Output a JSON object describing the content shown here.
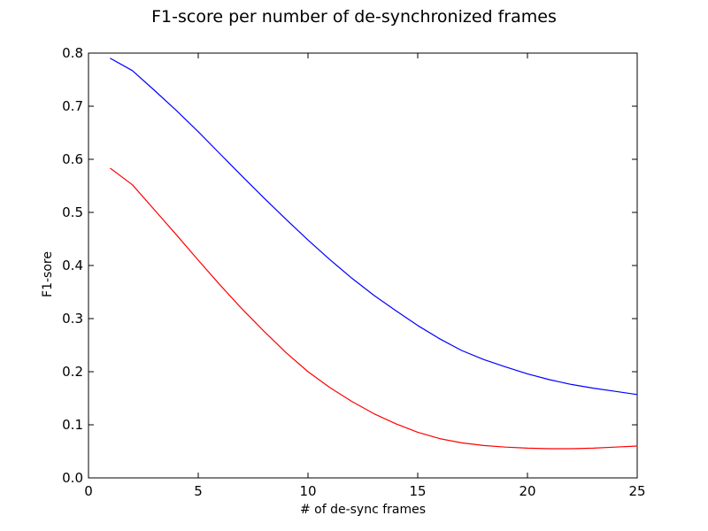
{
  "chart_data": {
    "type": "line",
    "title": "F1-score per number of de-synchronized frames",
    "xlabel": "# of de-sync frames",
    "ylabel": "F1-sore",
    "xlim": [
      0,
      25
    ],
    "ylim": [
      0.0,
      0.8
    ],
    "xticks": [
      "0",
      "5",
      "10",
      "15",
      "20",
      "25"
    ],
    "yticks": [
      "0.0",
      "0.1",
      "0.2",
      "0.3",
      "0.4",
      "0.5",
      "0.6",
      "0.7",
      "0.8"
    ],
    "grid": false,
    "legend": "none",
    "x": [
      1,
      2,
      3,
      4,
      5,
      6,
      7,
      8,
      9,
      10,
      11,
      12,
      13,
      14,
      15,
      16,
      17,
      18,
      19,
      20,
      21,
      22,
      23,
      24,
      25
    ],
    "series": [
      {
        "color": "#0000ff",
        "values": [
          0.79,
          0.767,
          0.73,
          0.692,
          0.652,
          0.61,
          0.568,
          0.527,
          0.487,
          0.448,
          0.411,
          0.376,
          0.344,
          0.315,
          0.287,
          0.262,
          0.24,
          0.223,
          0.209,
          0.196,
          0.185,
          0.176,
          0.169,
          0.163,
          0.157
        ]
      },
      {
        "color": "#ff0000",
        "values": [
          0.583,
          0.552,
          0.505,
          0.458,
          0.41,
          0.363,
          0.318,
          0.276,
          0.236,
          0.2,
          0.17,
          0.144,
          0.121,
          0.102,
          0.086,
          0.074,
          0.066,
          0.061,
          0.058,
          0.056,
          0.055,
          0.055,
          0.056,
          0.058,
          0.06
        ]
      }
    ]
  }
}
